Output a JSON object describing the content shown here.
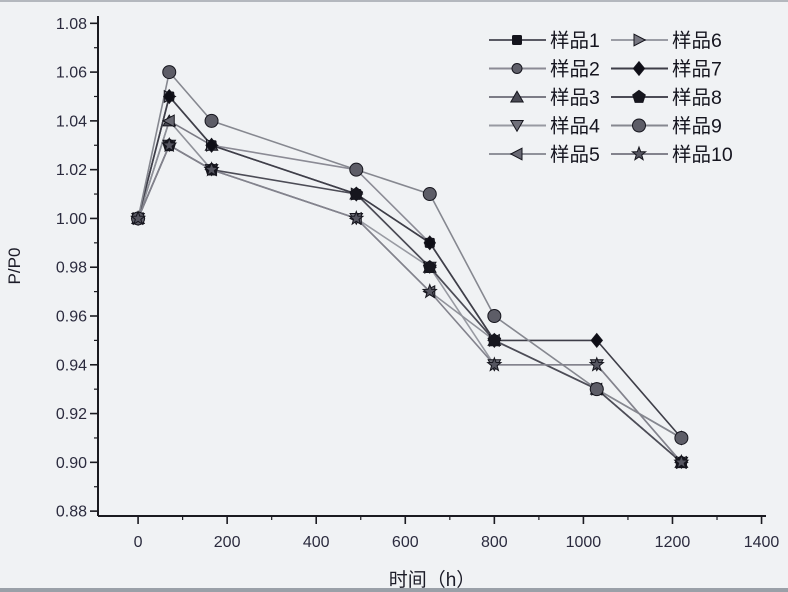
{
  "page": {
    "background_color": "#f0f2f4",
    "top_edge_color": "#b4b8be",
    "bottom_edge_color": "#9aa0a8"
  },
  "chart_data": {
    "type": "line",
    "title": "",
    "xlabel": "时间（h）",
    "ylabel": "P/P0",
    "axis_color": "#1a1a20",
    "tick_label_color": "#2b2b3e",
    "grid": false,
    "legend_position": "top-right",
    "legend_columns": 2,
    "legend_rows_per_column": 5,
    "xlim": [
      -90,
      1410
    ],
    "ylim": [
      0.878,
      1.083
    ],
    "x_ticks": [
      0,
      200,
      400,
      600,
      800,
      1000,
      1200,
      1400
    ],
    "x_minor_ticks": [
      100,
      300,
      500,
      700,
      900,
      1100,
      1300
    ],
    "y_ticks": [
      0.88,
      0.9,
      0.92,
      0.94,
      0.96,
      0.98,
      1.0,
      1.02,
      1.04,
      1.06,
      1.08
    ],
    "y_minor_ticks": [
      0.89,
      0.91,
      0.93,
      0.95,
      0.97,
      0.99,
      1.01,
      1.03,
      1.05,
      1.07
    ],
    "x": [
      0,
      70,
      165,
      490,
      655,
      800,
      1030,
      1220
    ],
    "series": [
      {
        "name": "样品1",
        "marker": "square",
        "marker_color": "#14141c",
        "line_color": "#5a5a64",
        "values": [
          1.0,
          1.05,
          1.03,
          1.01,
          0.99,
          0.95,
          0.93,
          0.9
        ]
      },
      {
        "name": "样品2",
        "marker": "circle",
        "marker_color": "#60606a",
        "line_color": "#8b8b95",
        "values": [
          1.0,
          1.05,
          1.03,
          1.02,
          0.99,
          0.95,
          0.93,
          0.91
        ]
      },
      {
        "name": "样品3",
        "marker": "triangle-up",
        "marker_color": "#4a4a54",
        "line_color": "#7c7c86",
        "values": [
          1.0,
          1.04,
          1.03,
          1.01,
          0.98,
          0.95,
          0.93,
          0.9
        ]
      },
      {
        "name": "样品4",
        "marker": "triangle-down",
        "marker_color": "#70707a",
        "line_color": "#989aa2",
        "values": [
          1.0,
          1.03,
          1.02,
          1.0,
          0.98,
          0.94,
          0.94,
          0.9
        ]
      },
      {
        "name": "样品5",
        "marker": "triangle-left",
        "marker_color": "#686872",
        "line_color": "#90929a",
        "values": [
          1.0,
          1.04,
          1.02,
          1.0,
          0.97,
          0.95,
          0.93,
          0.9
        ]
      },
      {
        "name": "样品6",
        "marker": "triangle-right",
        "marker_color": "#767680",
        "line_color": "#9b9da5",
        "values": [
          1.0,
          1.05,
          1.03,
          1.01,
          0.98,
          0.95,
          0.93,
          0.9
        ]
      },
      {
        "name": "样品7",
        "marker": "diamond",
        "marker_color": "#0e0e16",
        "line_color": "#3e3e48",
        "values": [
          1.0,
          1.05,
          1.03,
          1.01,
          0.99,
          0.95,
          0.95,
          0.91
        ]
      },
      {
        "name": "样品8",
        "marker": "pentagon",
        "marker_color": "#16161e",
        "line_color": "#4c4c56",
        "values": [
          1.0,
          1.03,
          1.02,
          1.01,
          0.98,
          0.95,
          0.93,
          0.9
        ]
      },
      {
        "name": "样品9",
        "marker": "circle-lg",
        "marker_color": "#5d5d67",
        "line_color": "#868890",
        "values": [
          1.0,
          1.06,
          1.04,
          1.02,
          1.01,
          0.96,
          0.93,
          0.91
        ]
      },
      {
        "name": "样品10",
        "marker": "star",
        "marker_color": "#555560",
        "line_color": "#83838d",
        "values": [
          1.0,
          1.03,
          1.02,
          1.0,
          0.97,
          0.94,
          0.94,
          0.9
        ]
      }
    ]
  }
}
